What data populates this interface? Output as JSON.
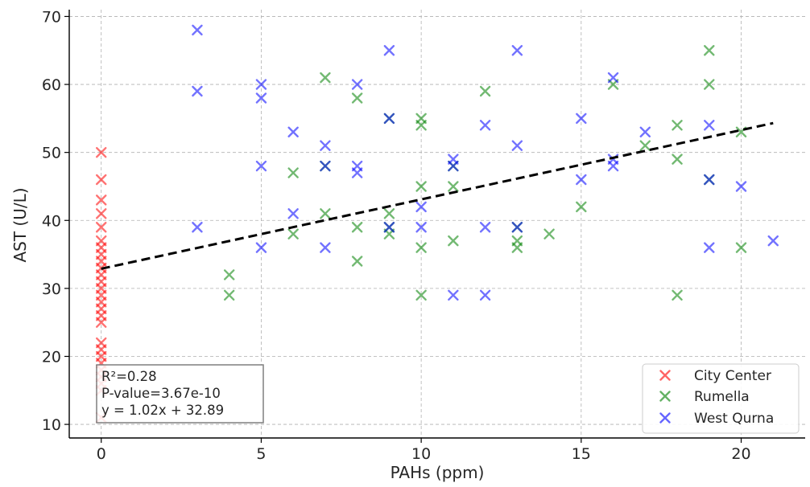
{
  "chart_data": {
    "type": "scatter",
    "xlabel": "PAHs (ppm)",
    "ylabel": "AST (U/L)",
    "xlim": [
      -1,
      22
    ],
    "ylim": [
      8,
      71
    ],
    "x_ticks": [
      0,
      5,
      10,
      15,
      20
    ],
    "y_ticks": [
      10,
      20,
      30,
      40,
      50,
      60,
      70
    ],
    "grid": true,
    "legend_position": "bottom-right",
    "series": [
      {
        "name": "City Center",
        "color": "#ff0000",
        "points": [
          [
            0,
            50
          ],
          [
            0,
            46
          ],
          [
            0,
            43
          ],
          [
            0,
            41
          ],
          [
            0,
            39
          ],
          [
            0,
            37
          ],
          [
            0,
            36
          ],
          [
            0,
            35
          ],
          [
            0,
            34
          ],
          [
            0,
            33
          ],
          [
            0,
            32
          ],
          [
            0,
            31
          ],
          [
            0,
            30
          ],
          [
            0,
            29
          ],
          [
            0,
            28
          ],
          [
            0,
            27
          ],
          [
            0,
            26
          ],
          [
            0,
            25
          ],
          [
            0,
            22
          ],
          [
            0,
            21
          ],
          [
            0,
            20
          ],
          [
            0,
            19
          ],
          [
            0,
            18
          ],
          [
            0,
            17
          ],
          [
            0,
            16
          ],
          [
            0,
            15
          ],
          [
            0,
            11
          ]
        ]
      },
      {
        "name": "Rumella",
        "color": "#008000",
        "points": [
          [
            4,
            32
          ],
          [
            4,
            29
          ],
          [
            6,
            47
          ],
          [
            6,
            38
          ],
          [
            7,
            61
          ],
          [
            7,
            41
          ],
          [
            7,
            48
          ],
          [
            8,
            58
          ],
          [
            8,
            39
          ],
          [
            8,
            34
          ],
          [
            9,
            41
          ],
          [
            9,
            38
          ],
          [
            9,
            39
          ],
          [
            9,
            55
          ],
          [
            10,
            55
          ],
          [
            10,
            54
          ],
          [
            10,
            45
          ],
          [
            10,
            36
          ],
          [
            10,
            29
          ],
          [
            11,
            45
          ],
          [
            11,
            48
          ],
          [
            11,
            37
          ],
          [
            12,
            59
          ],
          [
            13,
            37
          ],
          [
            13,
            36
          ],
          [
            13,
            39
          ],
          [
            14,
            38
          ],
          [
            15,
            42
          ],
          [
            16,
            60
          ],
          [
            17,
            51
          ],
          [
            18,
            54
          ],
          [
            18,
            49
          ],
          [
            18,
            29
          ],
          [
            19,
            65
          ],
          [
            19,
            60
          ],
          [
            19,
            46
          ],
          [
            20,
            53
          ],
          [
            20,
            36
          ]
        ]
      },
      {
        "name": "West Qurna",
        "color": "#0000ff",
        "points": [
          [
            3,
            68
          ],
          [
            3,
            59
          ],
          [
            3,
            39
          ],
          [
            5,
            60
          ],
          [
            5,
            58
          ],
          [
            5,
            48
          ],
          [
            5,
            36
          ],
          [
            6,
            53
          ],
          [
            6,
            41
          ],
          [
            7,
            51
          ],
          [
            7,
            48
          ],
          [
            7,
            36
          ],
          [
            8,
            60
          ],
          [
            8,
            48
          ],
          [
            8,
            47
          ],
          [
            9,
            65
          ],
          [
            9,
            55
          ],
          [
            9,
            39
          ],
          [
            10,
            42
          ],
          [
            10,
            39
          ],
          [
            11,
            49
          ],
          [
            11,
            48
          ],
          [
            11,
            29
          ],
          [
            12,
            54
          ],
          [
            12,
            39
          ],
          [
            12,
            29
          ],
          [
            13,
            65
          ],
          [
            13,
            51
          ],
          [
            13,
            39
          ],
          [
            15,
            55
          ],
          [
            15,
            46
          ],
          [
            16,
            61
          ],
          [
            16,
            49
          ],
          [
            16,
            48
          ],
          [
            17,
            53
          ],
          [
            19,
            54
          ],
          [
            19,
            46
          ],
          [
            19,
            36
          ],
          [
            20,
            45
          ],
          [
            21,
            37
          ]
        ]
      }
    ],
    "trendline": {
      "slope": 1.02,
      "intercept": 32.89,
      "x_range": [
        0,
        21
      ],
      "color": "#000000",
      "style": "dashed"
    },
    "annotation": {
      "lines": [
        "R²=0.28",
        "P-value=3.67e-10",
        "y = 1.02x + 32.89"
      ]
    }
  }
}
